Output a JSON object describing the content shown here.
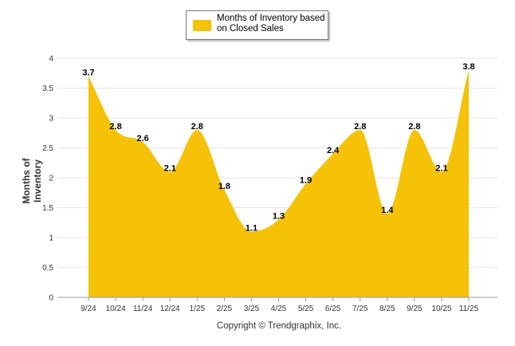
{
  "chart_data": {
    "type": "area",
    "categories": [
      "9/24",
      "10/24",
      "11/24",
      "12/24",
      "1/25",
      "2/25",
      "3/25",
      "4/25",
      "5/25",
      "6/25",
      "7/25",
      "8/25",
      "9/25",
      "10/25",
      "11/25"
    ],
    "series": [
      {
        "name": "Months of Inventory based on Closed Sales",
        "values": [
          3.7,
          2.8,
          2.6,
          2.1,
          2.8,
          1.8,
          1.1,
          1.3,
          1.9,
          2.4,
          2.8,
          1.4,
          2.8,
          2.1,
          3.8
        ],
        "color": "#f5c208"
      }
    ],
    "ylabel": "Months of Inventory",
    "xlabel": "",
    "ylim": [
      0,
      4
    ],
    "yticks": [
      "0",
      "0.5",
      "1",
      "1.5",
      "2",
      "2.5",
      "3",
      "3.5",
      "4"
    ],
    "grid": true,
    "legend_position": "top-center"
  },
  "legend": {
    "label_line1": "Months of Inventory based",
    "label_line2": "on Closed Sales"
  },
  "footer": {
    "copyright": "Copyright © Trendgraphix, Inc."
  }
}
